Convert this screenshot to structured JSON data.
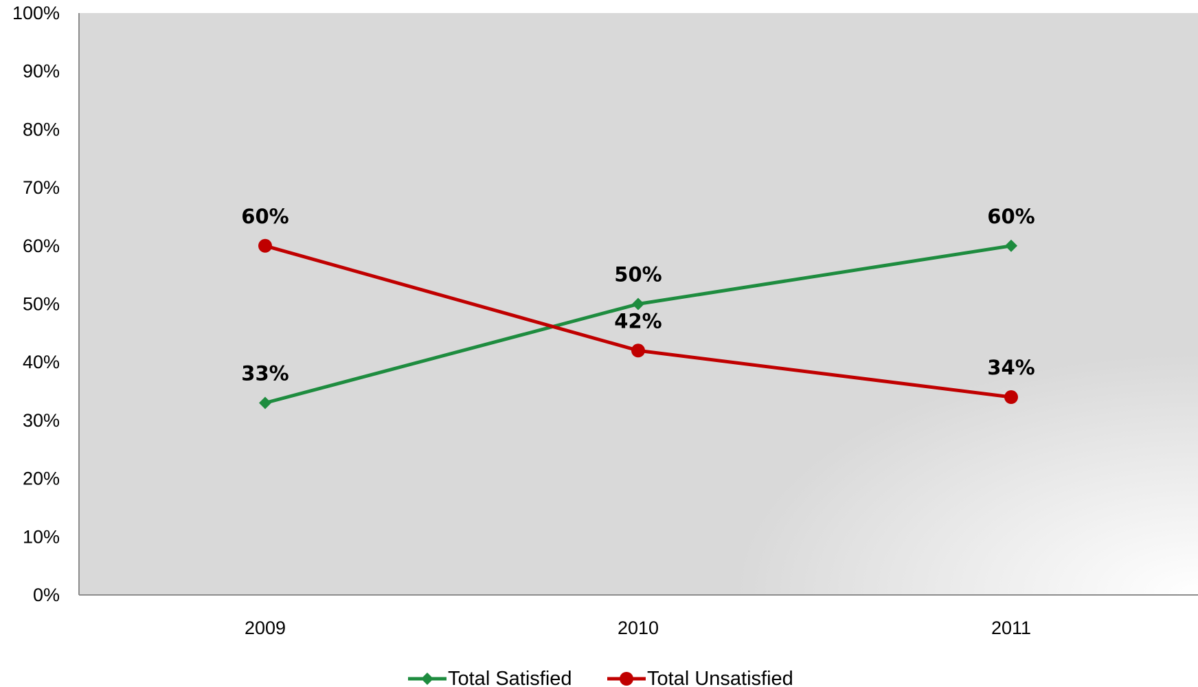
{
  "chart_data": {
    "type": "line",
    "categories": [
      "2009",
      "2010",
      "2011"
    ],
    "series": [
      {
        "name": "Total Satisfied",
        "values": [
          33,
          50,
          60
        ],
        "labels": [
          "33%",
          "50%",
          "60%"
        ],
        "color": "#1e8c3f",
        "marker": "diamond"
      },
      {
        "name": "Total Unsatisfied",
        "values": [
          60,
          42,
          34
        ],
        "labels": [
          "60%",
          "42%",
          "34%"
        ],
        "color": "#c00000",
        "marker": "circle"
      }
    ],
    "yticks": [
      "0%",
      "10%",
      "20%",
      "30%",
      "40%",
      "50%",
      "60%",
      "70%",
      "80%",
      "90%",
      "100%"
    ],
    "ylim": [
      0,
      100
    ],
    "title": "",
    "xlabel": "",
    "ylabel": "",
    "grid": false,
    "legend": "bottom",
    "plot_background": "#d9d9d9"
  }
}
